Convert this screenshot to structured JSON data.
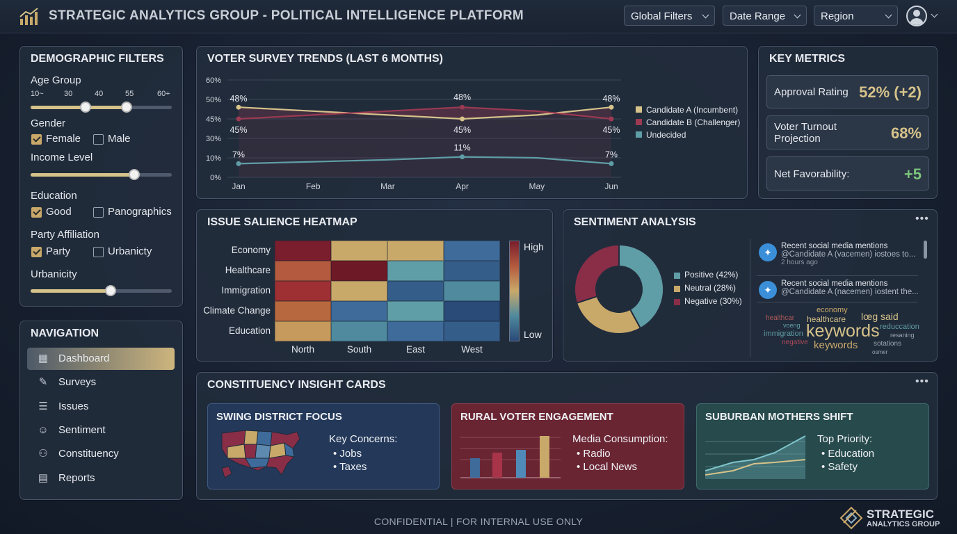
{
  "header": {
    "title": "STRATEGIC ANALYTICS GROUP - POLITICAL INTELLIGENCE PLATFORM",
    "filters": [
      "Global Filters",
      "Date Range",
      "Region"
    ]
  },
  "demographics": {
    "title": "DEMOGRAPHIC FILTERS",
    "age_group": {
      "label": "Age Group",
      "ticks": [
        "10~",
        "30",
        "40",
        "55",
        "60+"
      ],
      "range": [
        40,
        55
      ]
    },
    "gender": {
      "label": "Gender",
      "options": [
        {
          "label": "Female",
          "checked": true
        },
        {
          "label": "Male",
          "checked": false
        }
      ]
    },
    "income": {
      "label": "Income Level",
      "level": 0.74
    },
    "education": {
      "label": "Education",
      "options": [
        {
          "label": "Good",
          "checked": true
        },
        {
          "label": "Panographics",
          "checked": false
        }
      ]
    },
    "party": {
      "label": "Party Affiliation",
      "options": [
        {
          "label": "Party",
          "checked": true
        },
        {
          "label": "Urbanicty",
          "checked": false
        }
      ]
    },
    "urbanicity": {
      "label": "Urbanicity",
      "level": 0.56
    }
  },
  "navigation": {
    "title": "NAVIGATION",
    "items": [
      {
        "label": "Dashboard",
        "icon": "dashboard-icon",
        "glyph": "▦",
        "active": true
      },
      {
        "label": "Surveys",
        "icon": "survey-icon",
        "glyph": "✎",
        "active": false
      },
      {
        "label": "Issues",
        "icon": "issues-icon",
        "glyph": "☰",
        "active": false
      },
      {
        "label": "Sentiment",
        "icon": "smiley-icon",
        "glyph": "☺",
        "active": false
      },
      {
        "label": "Constituency",
        "icon": "people-icon",
        "glyph": "⚇",
        "active": false
      },
      {
        "label": "Reports",
        "icon": "report-icon",
        "glyph": "▤",
        "active": false
      }
    ]
  },
  "survey": {
    "title": "VOTER SURVEY TRENDS (LAST 6 MONTHS)"
  },
  "chart_data": {
    "type": "line",
    "categories": [
      "Jan",
      "Feb",
      "Mar",
      "Apr",
      "May",
      "Jun"
    ],
    "y_ticks": [
      "60%",
      "50%",
      "45%",
      "30%",
      "10%",
      "0%"
    ],
    "series": [
      {
        "name": "Candidate A (Incumbent)",
        "color": "#d6c38a",
        "values": [
          48,
          47,
          46,
          45,
          46,
          48
        ],
        "labels": {
          "0": "48%",
          "3": "45%",
          "5": "48%"
        }
      },
      {
        "name": "Candidate B (Challenger)",
        "color": "#9b3a52",
        "values": [
          45,
          46,
          47,
          48,
          47,
          45
        ],
        "labels": {
          "0": "45%",
          "3": "48%",
          "5": "45%"
        }
      },
      {
        "name": "Undecided",
        "color": "#5f9ea6",
        "values": [
          7,
          8,
          9,
          11,
          10,
          7
        ],
        "labels": {
          "0": "7%",
          "3": "11%",
          "5": "7%"
        }
      }
    ],
    "grid": true,
    "legend": "right"
  },
  "metrics": {
    "title": "KEY METRICS",
    "items": [
      {
        "label": "Approval Rating",
        "value": "52% (+2)",
        "color": "#d6c38a"
      },
      {
        "label": "Voter Turnout Projection",
        "value": "68%",
        "color": "#d6c38a"
      },
      {
        "label": "Net Favorability:",
        "value": "+5",
        "color": "#7cc47a"
      }
    ]
  },
  "heatmap": {
    "title": "ISSUE SALIENCE HEATMAP",
    "rows": [
      "Economy",
      "Healthcare",
      "Immigration",
      "Climate Change",
      "Education"
    ],
    "cols": [
      "North",
      "South",
      "East",
      "West"
    ],
    "colors": [
      [
        "#7a1e2e",
        "#c9a96a",
        "#c9a96a",
        "#3e6b9a"
      ],
      [
        "#b45a3e",
        "#6e1a26",
        "#5f9ea6",
        "#355d8a"
      ],
      [
        "#9e3033",
        "#c9a96a",
        "#355d8a",
        "#4f8a9e"
      ],
      [
        "#b8683e",
        "#3e6b9a",
        "#5f9ea6",
        "#2a4a78"
      ],
      [
        "#c59a5c",
        "#4f8a9e",
        "#3e6b9a",
        "#355d8a"
      ]
    ],
    "scale_high": "High",
    "scale_low": "Low"
  },
  "sentiment": {
    "title": "SENTIMENT ANALYSIS",
    "slices": [
      {
        "label": "Positive (42%)",
        "value": 42,
        "color": "#5f9ea6"
      },
      {
        "label": "Neutral (28%)",
        "value": 28,
        "color": "#c9a96a"
      },
      {
        "label": "Negative (30%)",
        "value": 30,
        "color": "#8a2e48"
      }
    ],
    "mentions": [
      {
        "title": "Recent social media mentions",
        "text": "@Candidate A (vacemen) iostoes to...",
        "time": "2 hours ago"
      },
      {
        "title": "Recent social media mentions",
        "text": "@Candidate A (nacemen) iostent the...",
        "time": ""
      }
    ],
    "words": [
      {
        "text": "economy",
        "color": "#c9a96a",
        "size": 11
      },
      {
        "text": "healthcar",
        "color": "#b05a5a",
        "size": 10
      },
      {
        "text": "healthcare",
        "color": "#d6c38a",
        "size": 12
      },
      {
        "text": "lœg said",
        "color": "#d6c38a",
        "size": 14
      },
      {
        "text": "voeng",
        "color": "#5f9ea6",
        "size": 9
      },
      {
        "text": "keywords",
        "color": "#d6c38a",
        "size": 25
      },
      {
        "text": "reduccation",
        "color": "#5f9ea6",
        "size": 11
      },
      {
        "text": "immigration",
        "color": "#5f9ea6",
        "size": 11
      },
      {
        "text": "resaning",
        "color": "#9aa4b2",
        "size": 9
      },
      {
        "text": "negative",
        "color": "#b04a5a",
        "size": 10
      },
      {
        "text": "keywords",
        "color": "#c9a96a",
        "size": 15
      },
      {
        "text": "sotations",
        "color": "#9aa4b2",
        "size": 10
      },
      {
        "text": "osmer",
        "color": "#9aa4b2",
        "size": 8
      }
    ]
  },
  "insights": {
    "title": "CONSTITUENCY INSIGHT CARDS",
    "cards": [
      {
        "title": "SWING DISTRICT FOCUS",
        "heading": "Key Concerns:",
        "bullets": [
          "Jobs",
          "Taxes"
        ]
      },
      {
        "title": "RURAL VOTER ENGAGEMENT",
        "heading": "Media Consumption:",
        "bullets": [
          "Radio",
          "Local News"
        ]
      },
      {
        "title": "SUBURBAN MOTHERS SHIFT",
        "heading": "Top Priority:",
        "bullets": [
          "Education",
          "Safety"
        ]
      }
    ]
  },
  "footer": {
    "confidential": "CONFIDENTIAL | FOR INTERNAL USE ONLY",
    "brand1": "STRATEGIC",
    "brand2": "ANALYTICS GROUP"
  }
}
